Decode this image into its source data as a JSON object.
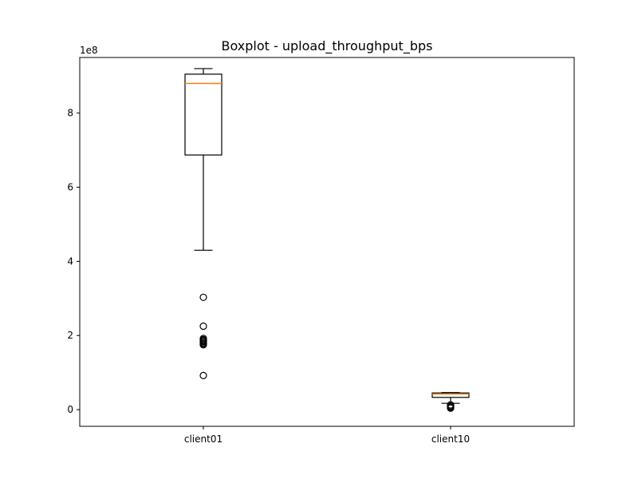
{
  "chart_data": {
    "type": "boxplot",
    "title": "Boxplot - upload_throughput_bps",
    "xlabel": "",
    "ylabel": "",
    "y_scale_label": "1e8",
    "y_multiplier": 100000000,
    "ylim": [
      -0.45,
      9.5
    ],
    "yticks": [
      0,
      2,
      4,
      6,
      8
    ],
    "ytick_labels": [
      "0",
      "2",
      "4",
      "6",
      "8"
    ],
    "grid": false,
    "categories": [
      "client01",
      "client10"
    ],
    "boxes": [
      {
        "label": "client01",
        "whisker_low": 4.3,
        "q1": 6.87,
        "median": 8.8,
        "q3": 9.05,
        "whisker_high": 9.2,
        "outliers": [
          3.03,
          2.25,
          1.92,
          1.89,
          1.86,
          1.84,
          1.81,
          1.78,
          1.75,
          0.92
        ]
      },
      {
        "label": "client10",
        "whisker_low": 0.17,
        "q1": 0.33,
        "median": 0.42,
        "q3": 0.45,
        "whisker_high": 0.46,
        "outliers": [
          0.13,
          0.1,
          0.08,
          0.06,
          0.04
        ]
      }
    ],
    "colors": {
      "box": "#000000",
      "median": "#ff7f0e",
      "outlier_edge": "#000000"
    }
  }
}
